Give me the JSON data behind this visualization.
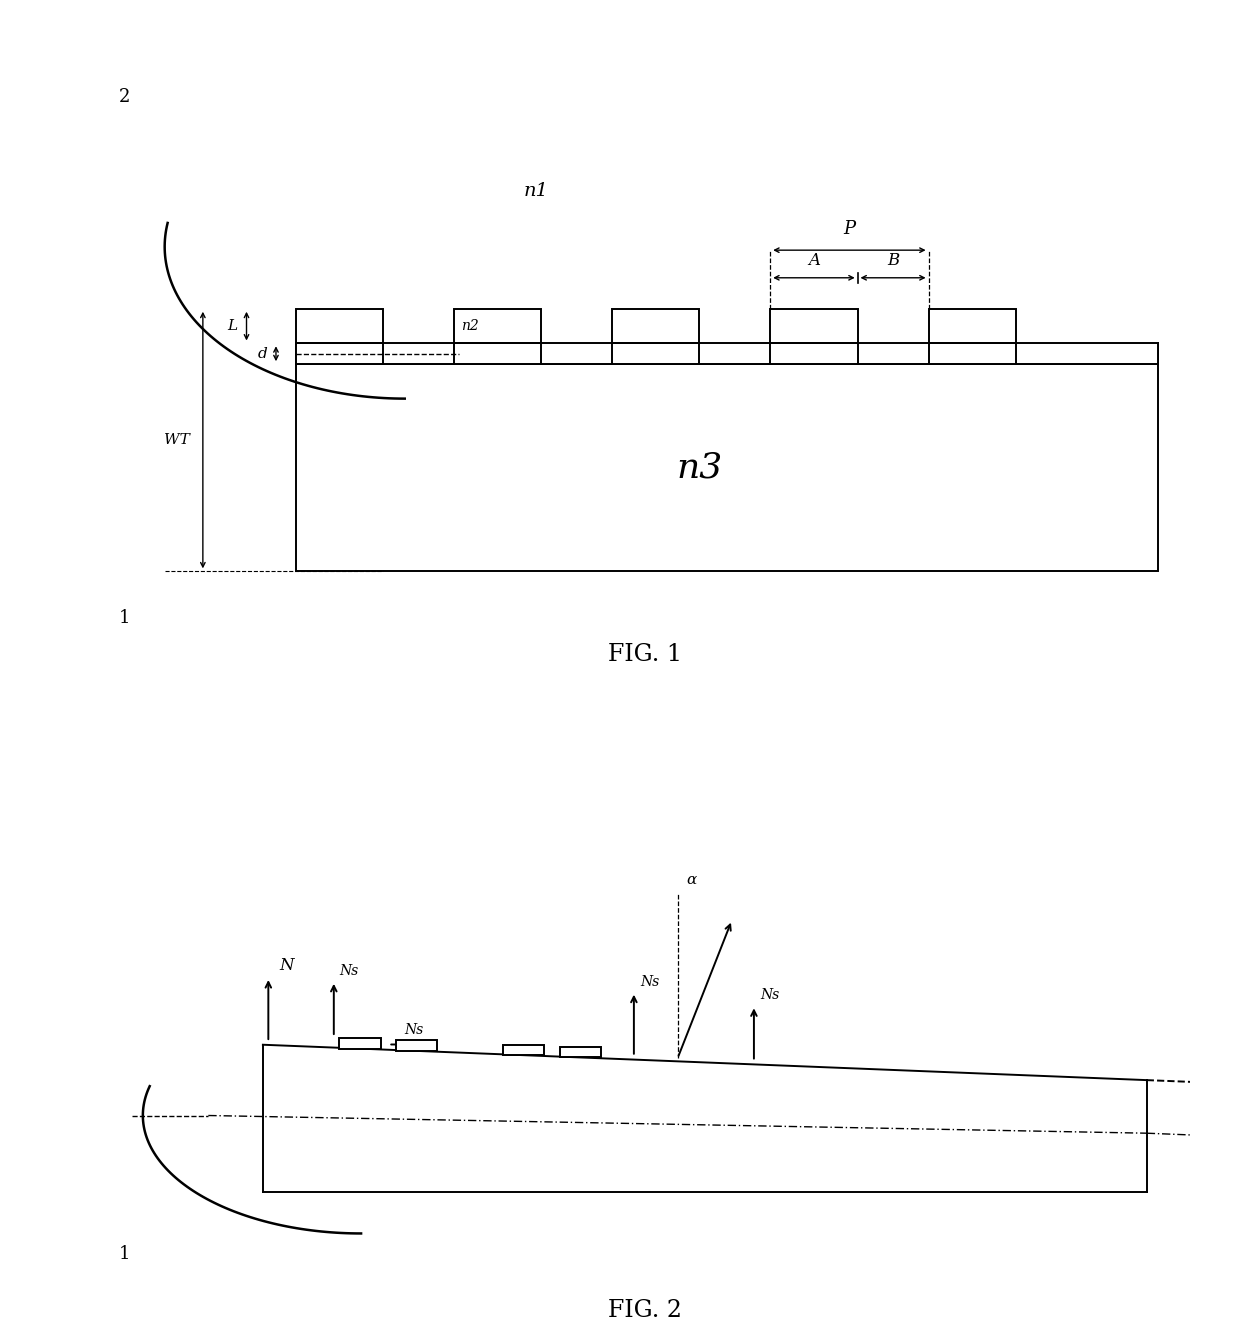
{
  "background_color": "#ffffff",
  "fig_width": 12.4,
  "fig_height": 13.34,
  "fig1_caption": "FIG. 1",
  "fig2_caption": "FIG. 2",
  "label_2": "2",
  "label_1": "1",
  "label_n1": "n1",
  "label_n2": "n2",
  "label_n3": "n3",
  "label_L": "L",
  "label_d": "d",
  "label_WT": "WT",
  "label_P": "P",
  "label_A": "A",
  "label_B": "B",
  "label_N": "N",
  "label_Ns": "Ns",
  "label_alpha": "α",
  "hatch_pattern": "////",
  "line_color": "#000000"
}
